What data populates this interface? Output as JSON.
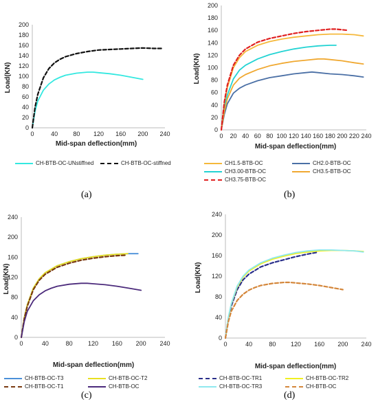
{
  "captions": [
    "(a)",
    "(b)",
    "(c)",
    "(d)"
  ],
  "chart_data": [
    {
      "type": "line",
      "title": "",
      "xlabel": "Mid-span deflection(mm)",
      "ylabel": "Load(KN)",
      "xlim": [
        0,
        240
      ],
      "ylim": [
        0,
        200
      ],
      "xticks": [
        0,
        40,
        80,
        120,
        160,
        200,
        240
      ],
      "yticks": [
        0,
        20,
        40,
        60,
        80,
        100,
        120,
        140,
        160,
        180,
        200
      ],
      "grid": false,
      "legend_position": "bottom",
      "series": [
        {
          "name": "CH-BTB-OC-UNstiffned",
          "color": "#33e8e0",
          "dash": "solid",
          "x": [
            0,
            5,
            10,
            20,
            30,
            40,
            50,
            60,
            80,
            100,
            110,
            120,
            140,
            160,
            180,
            200
          ],
          "y": [
            0,
            32,
            52,
            73,
            85,
            93,
            98,
            102,
            106,
            108,
            108,
            107,
            105,
            102,
            98,
            94
          ]
        },
        {
          "name": "CH-BTB-OC-stiffned",
          "color": "#111111",
          "dash": "dashed",
          "x": [
            0,
            5,
            10,
            20,
            30,
            40,
            50,
            60,
            80,
            100,
            120,
            140,
            160,
            180,
            200,
            220,
            235
          ],
          "y": [
            0,
            40,
            65,
            97,
            115,
            126,
            133,
            138,
            144,
            148,
            151,
            152,
            153,
            154,
            155,
            154,
            154
          ]
        }
      ]
    },
    {
      "type": "line",
      "title": "",
      "xlabel": "Mid-span deflection(mm)",
      "ylabel": "Load(KN)",
      "xlim": [
        0,
        240
      ],
      "ylim": [
        0,
        200
      ],
      "xticks": [
        0,
        20,
        40,
        60,
        80,
        100,
        120,
        140,
        160,
        180,
        200,
        220,
        240
      ],
      "yticks": [
        0,
        20,
        40,
        60,
        80,
        100,
        120,
        140,
        160,
        180,
        200
      ],
      "grid": false,
      "legend_position": "bottom",
      "series": [
        {
          "name": "CH1.5-BTB-OC",
          "color": "#f5b83a",
          "dash": "solid",
          "x": [
            0,
            5,
            10,
            20,
            30,
            40,
            60,
            80,
            100,
            120,
            140,
            160,
            180,
            200,
            220,
            235
          ],
          "y": [
            0,
            42,
            68,
            100,
            116,
            126,
            136,
            142,
            146,
            149,
            151,
            153,
            154,
            154,
            153,
            151
          ]
        },
        {
          "name": "CH2.0-BTB-OC",
          "color": "#4a6fa5",
          "dash": "solid",
          "x": [
            0,
            5,
            10,
            20,
            30,
            40,
            60,
            80,
            100,
            120,
            140,
            150,
            160,
            180,
            200,
            220,
            235
          ],
          "y": [
            0,
            25,
            42,
            59,
            67,
            72,
            79,
            84,
            87,
            90,
            92,
            93,
            92,
            90,
            89,
            87,
            85
          ]
        },
        {
          "name": "CH3.00-BTB-OC",
          "color": "#22d3d3",
          "dash": "solid",
          "x": [
            0,
            5,
            10,
            20,
            30,
            40,
            60,
            80,
            100,
            120,
            140,
            160,
            180,
            190
          ],
          "y": [
            0,
            35,
            56,
            82,
            96,
            104,
            114,
            121,
            126,
            130,
            133,
            135,
            136,
            136
          ]
        },
        {
          "name": "CH3.5-BTB-OC",
          "color": "#f0a830",
          "dash": "solid",
          "x": [
            0,
            5,
            10,
            20,
            30,
            40,
            60,
            80,
            100,
            120,
            140,
            160,
            170,
            180,
            200,
            220,
            235
          ],
          "y": [
            0,
            30,
            50,
            72,
            83,
            89,
            97,
            103,
            107,
            110,
            112,
            114,
            114,
            113,
            111,
            108,
            106
          ]
        },
        {
          "name": "CH3.75-BTB-OC",
          "color": "#e02020",
          "dash": "dashed",
          "x": [
            0,
            5,
            10,
            20,
            30,
            40,
            60,
            80,
            100,
            120,
            140,
            160,
            180,
            190,
            200,
            210
          ],
          "y": [
            0,
            45,
            72,
            104,
            120,
            130,
            141,
            147,
            151,
            155,
            158,
            160,
            162,
            162,
            161,
            160
          ]
        }
      ]
    },
    {
      "type": "line",
      "title": "",
      "xlabel": "Mid-span deflection(mm)",
      "ylabel": "Load(KN)",
      "xlim": [
        0,
        240
      ],
      "ylim": [
        0,
        240
      ],
      "xticks": [
        0,
        40,
        80,
        120,
        160,
        200,
        240
      ],
      "yticks": [
        0,
        40,
        80,
        120,
        160,
        200,
        240
      ],
      "grid": false,
      "legend_position": "bottom",
      "series": [
        {
          "name": "CH-BTB-OC-T3",
          "color": "#4a90d9",
          "dash": "solid",
          "x": [
            0,
            5,
            10,
            20,
            30,
            40,
            60,
            80,
            100,
            120,
            140,
            160,
            180,
            195
          ],
          "y": [
            0,
            40,
            65,
            98,
            117,
            129,
            143,
            151,
            157,
            161,
            164,
            166,
            167,
            167
          ]
        },
        {
          "name": "CH-BTB-OC-T2",
          "color": "#e8e020",
          "dash": "solid",
          "x": [
            0,
            5,
            10,
            20,
            30,
            40,
            60,
            80,
            100,
            120,
            140,
            160,
            178
          ],
          "y": [
            0,
            40,
            65,
            98,
            117,
            129,
            143,
            151,
            157,
            161,
            164,
            166,
            167
          ]
        },
        {
          "name": "CH-BTB-OC-T1",
          "color": "#7a3a10",
          "dash": "dashed",
          "x": [
            0,
            5,
            10,
            20,
            30,
            40,
            60,
            80,
            100,
            120,
            140,
            160,
            175
          ],
          "y": [
            0,
            38,
            62,
            95,
            114,
            126,
            140,
            148,
            154,
            158,
            161,
            163,
            164
          ]
        },
        {
          "name": "CH-BTB-OC",
          "color": "#4b2a7b",
          "dash": "solid",
          "x": [
            0,
            5,
            10,
            20,
            30,
            40,
            50,
            60,
            80,
            100,
            110,
            120,
            140,
            160,
            180,
            200
          ],
          "y": [
            0,
            32,
            52,
            73,
            85,
            93,
            98,
            102,
            106,
            108,
            108,
            107,
            105,
            102,
            98,
            94
          ]
        }
      ]
    },
    {
      "type": "line",
      "title": "",
      "xlabel": "Mid-span deflection(mm)",
      "ylabel": "Load(KN)",
      "xlim": [
        0,
        240
      ],
      "ylim": [
        0,
        240
      ],
      "xticks": [
        0,
        40,
        80,
        120,
        160,
        200,
        240
      ],
      "yticks": [
        0,
        40,
        80,
        120,
        160,
        200,
        240
      ],
      "grid": false,
      "legend_position": "bottom",
      "series": [
        {
          "name": "CH-BTB-OC-TR1",
          "color": "#2a2f8a",
          "dash": "dashed",
          "x": [
            0,
            5,
            10,
            20,
            30,
            40,
            60,
            80,
            100,
            120,
            140,
            155
          ],
          "y": [
            0,
            38,
            62,
            94,
            113,
            124,
            138,
            146,
            152,
            158,
            163,
            166
          ]
        },
        {
          "name": "CH-BTB-OC-TR2",
          "color": "#f0f020",
          "dash": "solid",
          "x": [
            0,
            5,
            10,
            20,
            30,
            40,
            60,
            80,
            100,
            120,
            140,
            160,
            180,
            200,
            220,
            235
          ],
          "y": [
            0,
            40,
            66,
            99,
            118,
            130,
            144,
            153,
            159,
            164,
            167,
            169,
            170,
            170,
            169,
            168
          ]
        },
        {
          "name": "CH-BTB-OC-TR3",
          "color": "#8fe8ee",
          "dash": "solid",
          "x": [
            0,
            5,
            10,
            20,
            30,
            40,
            60,
            80,
            100,
            120,
            140,
            160,
            180,
            200,
            220,
            235
          ],
          "y": [
            0,
            41,
            67,
            101,
            120,
            132,
            146,
            155,
            161,
            166,
            169,
            171,
            171,
            170,
            169,
            167
          ]
        },
        {
          "name": "CH-BTB-OC",
          "color": "#d4863a",
          "dash": "dashed",
          "x": [
            0,
            5,
            10,
            20,
            30,
            40,
            50,
            60,
            80,
            100,
            110,
            120,
            140,
            160,
            180,
            200
          ],
          "y": [
            0,
            32,
            52,
            73,
            85,
            93,
            98,
            102,
            106,
            108,
            108,
            107,
            105,
            102,
            98,
            94
          ]
        }
      ]
    }
  ]
}
